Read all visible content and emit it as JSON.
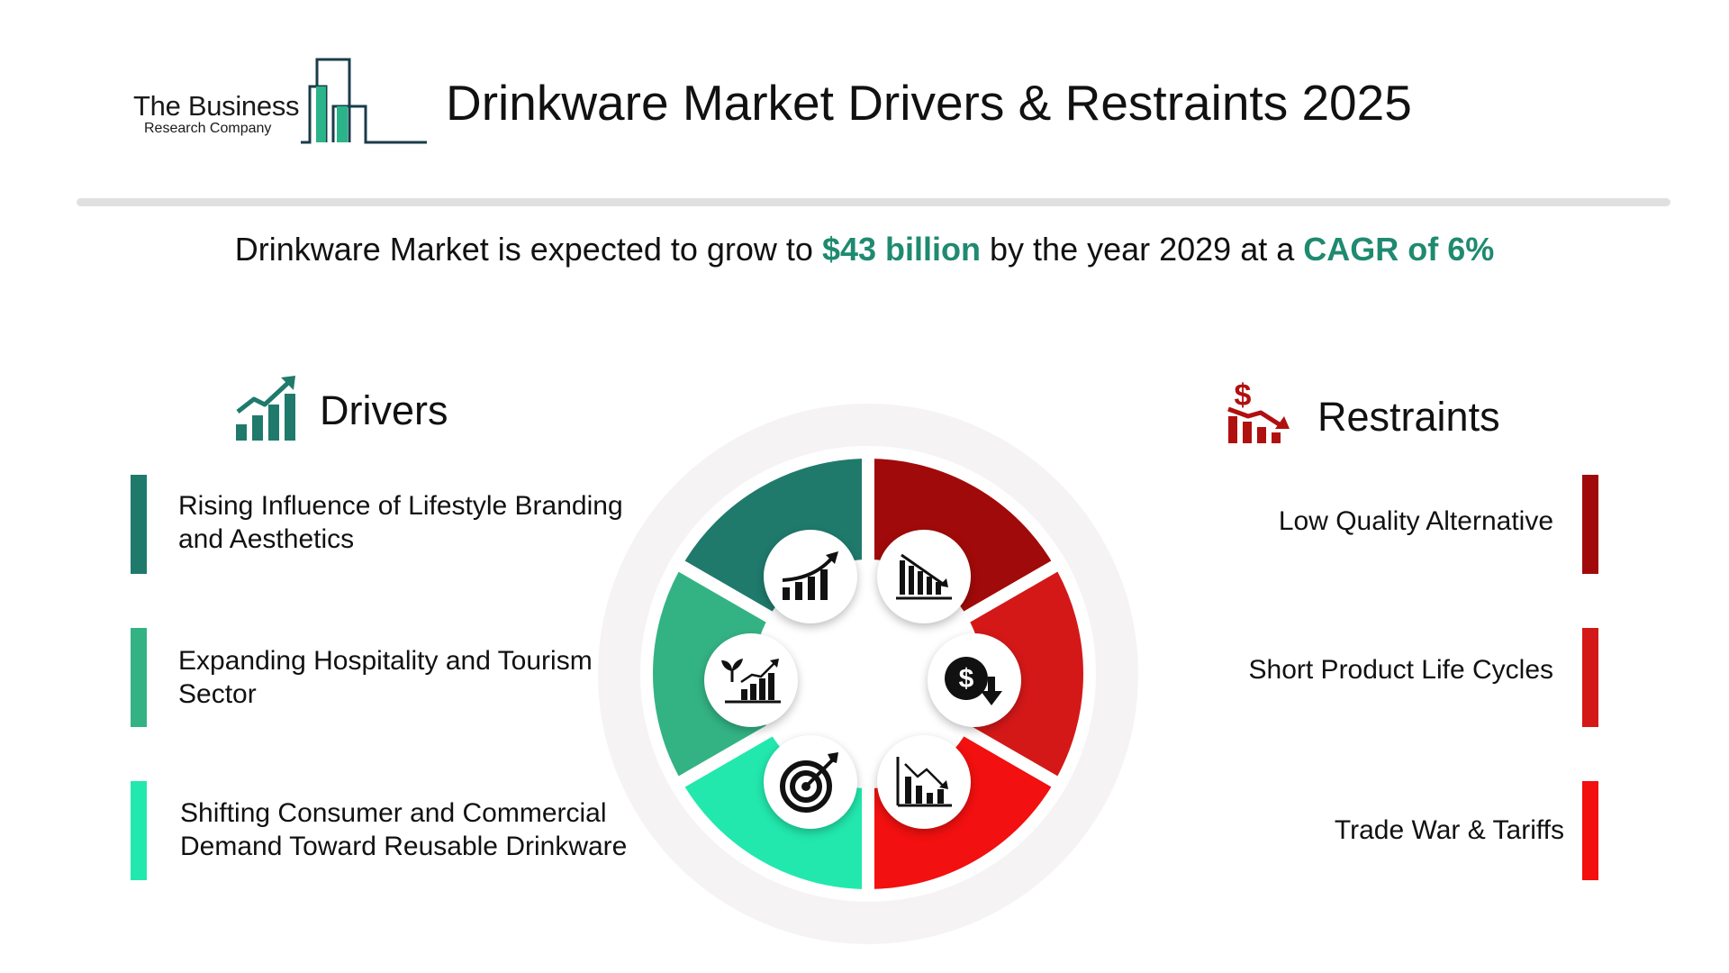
{
  "header": {
    "logo_line1": "The Business",
    "logo_line2": "Research Company",
    "title": "Drinkware Market Drivers & Restraints 2025"
  },
  "summary": {
    "prefix": "Drinkware Market is expected to grow to ",
    "value": "$43 billion",
    "middle": " by the year 2029 at a ",
    "cagr": "CAGR of 6%"
  },
  "drivers": {
    "heading": "Drivers",
    "items": [
      {
        "label": "Rising Influence of Lifestyle Branding and Aesthetics",
        "color": "#1f7a6c"
      },
      {
        "label": "Expanding Hospitality and Tourism Sector",
        "color": "#33b384"
      },
      {
        "label": "Shifting Consumer and Commercial Demand Toward Reusable Drinkware",
        "color": "#22e8ad"
      }
    ]
  },
  "restraints": {
    "heading": "Restraints",
    "items": [
      {
        "label": "Low Quality Alternative",
        "color": "#a10a0a"
      },
      {
        "label": "Short Product Life Cycles",
        "color": "#d41818"
      },
      {
        "label": "Trade War & Tariffs",
        "color": "#f21010"
      }
    ]
  },
  "colors": {
    "accent_green": "#1f8a70",
    "restraint_red": "#b01010",
    "wheel_backdrop": "#f5f3f3"
  },
  "wheel_icons": [
    "growth-chart-icon",
    "plant-growth-chart-icon",
    "target-icon",
    "declining-bars-icon",
    "dollar-down-icon",
    "declining-chart-icon"
  ]
}
